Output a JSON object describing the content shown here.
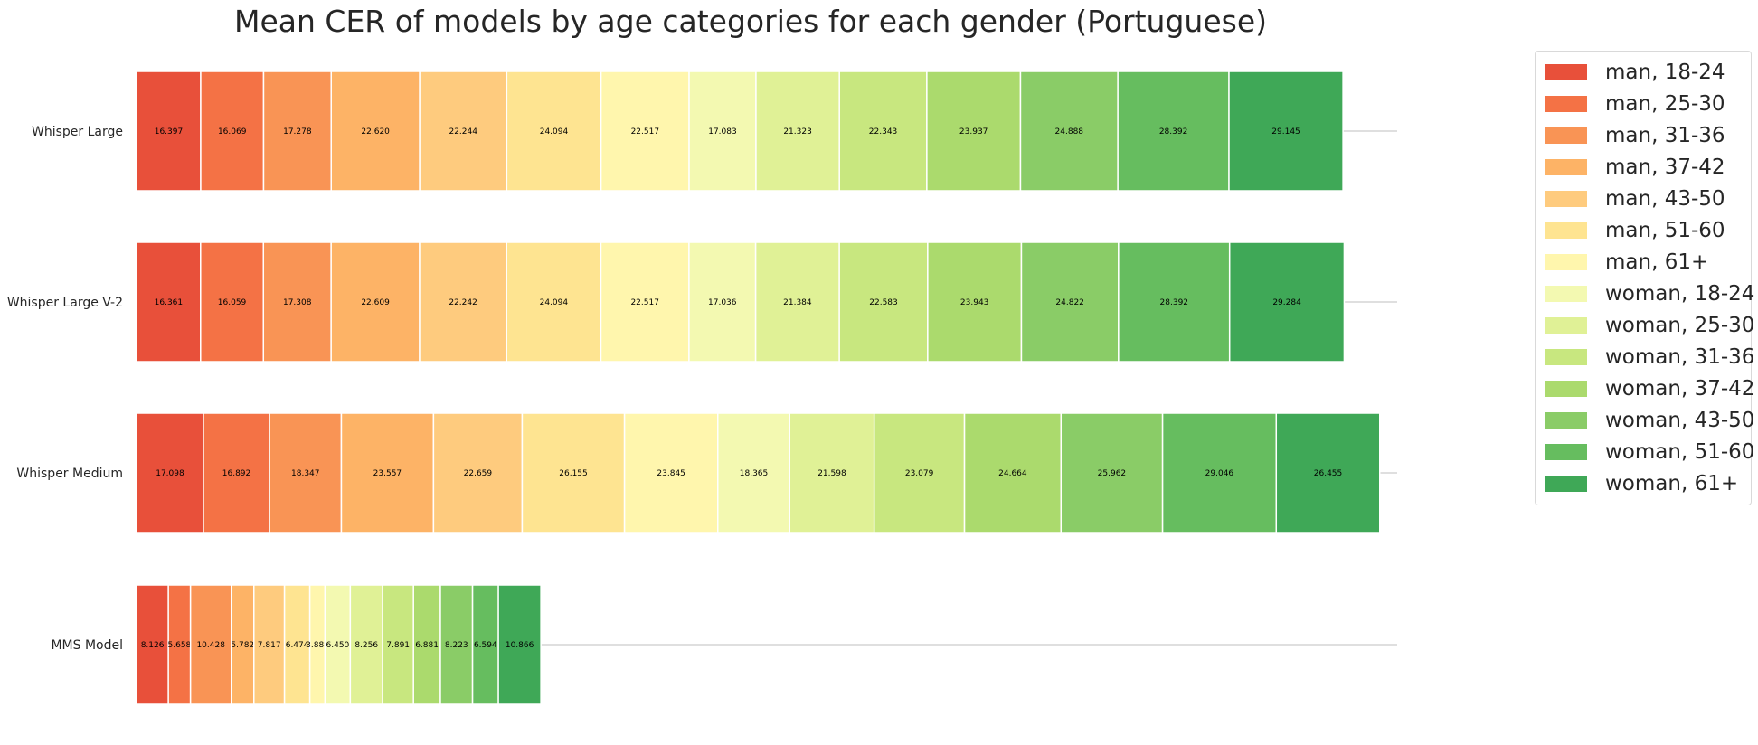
{
  "chart_data": {
    "type": "bar",
    "orientation": "horizontal-stacked",
    "title": "Mean CER of models by age categories for each gender (Portuguese)",
    "xlabel": "",
    "ylabel": "",
    "categories": [
      "Whisper Large",
      "Whisper Large V-2",
      "Whisper Medium",
      "MMS Model"
    ],
    "series": [
      {
        "name": "man, 18-24",
        "color": "#e8503a",
        "values": [
          16.397,
          16.361,
          17.098,
          8.126
        ],
        "labels": [
          "16.397",
          "16.361",
          "17.098",
          "8.126"
        ]
      },
      {
        "name": "man, 25-30",
        "color": "#f47245",
        "values": [
          16.069,
          16.059,
          16.892,
          5.658
        ],
        "labels": [
          "16.069",
          "16.059",
          "16.892",
          "5.658"
        ]
      },
      {
        "name": "man, 31-36",
        "color": "#f99455",
        "values": [
          17.278,
          17.308,
          18.347,
          10.428
        ],
        "labels": [
          "17.278",
          "17.308",
          "18.347",
          "10.428"
        ]
      },
      {
        "name": "man, 37-42",
        "color": "#fdb366",
        "values": [
          22.62,
          22.609,
          23.557,
          5.782
        ],
        "labels": [
          "22.620",
          "22.609",
          "23.557",
          "5.782"
        ]
      },
      {
        "name": "man, 43-50",
        "color": "#fecb7e",
        "values": [
          22.244,
          22.242,
          22.659,
          7.817
        ],
        "labels": [
          "22.244",
          "22.242",
          "22.659",
          "7.817"
        ]
      },
      {
        "name": "man, 51-60",
        "color": "#fee491",
        "values": [
          24.094,
          24.094,
          26.155,
          6.474
        ],
        "labels": [
          "24.094",
          "24.094",
          "26.155",
          "6.474"
        ]
      },
      {
        "name": "man, 61+",
        "color": "#fff6ad",
        "values": [
          22.517,
          22.517,
          23.845,
          3.888
        ],
        "labels": [
          "22.517",
          "22.517",
          "23.845",
          "3.888"
        ]
      },
      {
        "name": "woman, 18-24",
        "color": "#f3f9b1",
        "values": [
          17.083,
          17.036,
          18.365,
          6.45
        ],
        "labels": [
          "17.083",
          "17.036",
          "18.365",
          "6.450"
        ]
      },
      {
        "name": "woman, 25-30",
        "color": "#e0f196",
        "values": [
          21.323,
          21.384,
          21.598,
          8.256
        ],
        "labels": [
          "21.323",
          "21.384",
          "21.598",
          "8.256"
        ]
      },
      {
        "name": "woman, 31-36",
        "color": "#c8e77f",
        "values": [
          22.343,
          22.583,
          23.079,
          7.891
        ],
        "labels": [
          "22.343",
          "22.583",
          "23.079",
          "7.891"
        ]
      },
      {
        "name": "woman, 37-42",
        "color": "#abda6d",
        "values": [
          23.937,
          23.943,
          24.664,
          6.881
        ],
        "labels": [
          "23.937",
          "23.943",
          "24.664",
          "6.881"
        ]
      },
      {
        "name": "woman, 43-50",
        "color": "#8acc67",
        "values": [
          24.888,
          24.822,
          25.962,
          8.223
        ],
        "labels": [
          "24.888",
          "24.822",
          "25.962",
          "8.223"
        ]
      },
      {
        "name": "woman, 51-60",
        "color": "#66bd5f",
        "values": [
          28.392,
          28.392,
          29.046,
          6.594
        ],
        "labels": [
          "28.392",
          "28.392",
          "29.046",
          "6.594"
        ]
      },
      {
        "name": "woman, 61+",
        "color": "#3fa857",
        "values": [
          29.145,
          29.284,
          26.455,
          10.866
        ],
        "labels": [
          "29.145",
          "29.284",
          "26.455",
          "10.866"
        ]
      }
    ],
    "xlim": [
      0,
      322.173
    ],
    "grid": "horizontal-lines-per-category",
    "legend_placement": "outside-right-top",
    "gridline_color": "#cccccc",
    "bar_edge_color": "#ffffff",
    "label_color": "#000000",
    "text_color": "#262626"
  }
}
